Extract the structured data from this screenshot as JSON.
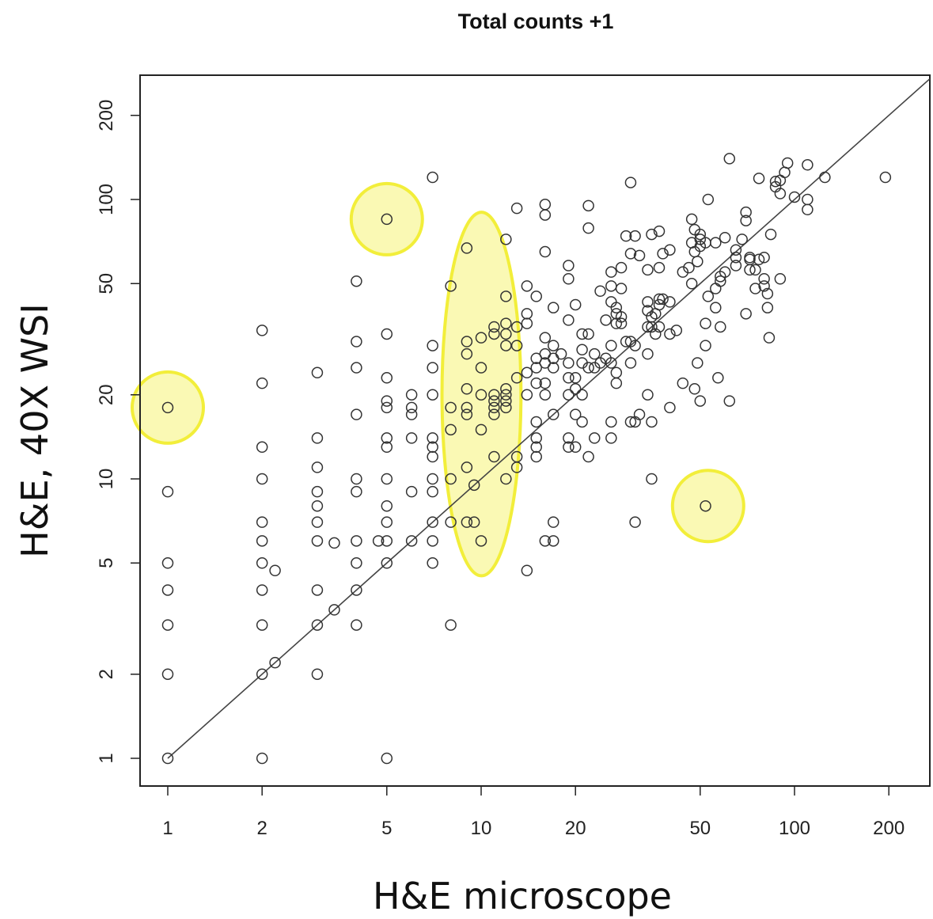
{
  "chart_data": {
    "type": "scatter",
    "title": "Total counts +1",
    "xlabel": "H&E microscope",
    "ylabel": "H&E, 40X WSI",
    "x_scale": "log",
    "y_scale": "log",
    "xlim": [
      0.9,
      300
    ],
    "ylim": [
      0.9,
      300
    ],
    "x_ticks": [
      1,
      2,
      5,
      10,
      20,
      50,
      100,
      200
    ],
    "x_tick_labels": [
      "1",
      "2",
      "5",
      "10",
      "20",
      "50",
      "100",
      "200"
    ],
    "y_ticks": [
      1,
      2,
      5,
      10,
      20,
      50,
      100,
      200
    ],
    "y_tick_labels": [
      "1",
      "2",
      "5",
      "10",
      "20",
      "50",
      "100",
      "200"
    ],
    "grid": false,
    "reference_line": "y = x",
    "marker": "open-circle",
    "highlight_color": "#f2ee3a",
    "highlights": [
      {
        "shape": "circle",
        "center": [
          1,
          18
        ]
      },
      {
        "shape": "circle",
        "center": [
          5,
          85
        ]
      },
      {
        "shape": "ellipse",
        "center": [
          10,
          20
        ],
        "x_range": [
          7.5,
          13.4
        ],
        "y_range": [
          4.5,
          90
        ]
      },
      {
        "shape": "circle",
        "center": [
          53,
          8
        ]
      }
    ],
    "points": [
      [
        1,
        1
      ],
      [
        1,
        2
      ],
      [
        1,
        3
      ],
      [
        1,
        4
      ],
      [
        1,
        5
      ],
      [
        1,
        9
      ],
      [
        1,
        18
      ],
      [
        2,
        1
      ],
      [
        2,
        2
      ],
      [
        2,
        3
      ],
      [
        2,
        4
      ],
      [
        2,
        5
      ],
      [
        2,
        6
      ],
      [
        2,
        7
      ],
      [
        2,
        10
      ],
      [
        2,
        13
      ],
      [
        2,
        22
      ],
      [
        2,
        34
      ],
      [
        2.2,
        2.2
      ],
      [
        2.2,
        4.7
      ],
      [
        3,
        2
      ],
      [
        3,
        3
      ],
      [
        3,
        4
      ],
      [
        3,
        6
      ],
      [
        3,
        7
      ],
      [
        3,
        8
      ],
      [
        3,
        9
      ],
      [
        3,
        11
      ],
      [
        3,
        14
      ],
      [
        3,
        24
      ],
      [
        3.4,
        3.4
      ],
      [
        3.4,
        5.9
      ],
      [
        4,
        3
      ],
      [
        4,
        4
      ],
      [
        4,
        5
      ],
      [
        4,
        6
      ],
      [
        4,
        9
      ],
      [
        4,
        10
      ],
      [
        4,
        17
      ],
      [
        4,
        25
      ],
      [
        4,
        31
      ],
      [
        4,
        51
      ],
      [
        4.7,
        6
      ],
      [
        5,
        1
      ],
      [
        5,
        5
      ],
      [
        5,
        6
      ],
      [
        5,
        7
      ],
      [
        5,
        8
      ],
      [
        5,
        10
      ],
      [
        5,
        13
      ],
      [
        5,
        14
      ],
      [
        5,
        18
      ],
      [
        5,
        19
      ],
      [
        5,
        23
      ],
      [
        5,
        33
      ],
      [
        5,
        85
      ],
      [
        6,
        6
      ],
      [
        6,
        9
      ],
      [
        6,
        14
      ],
      [
        6,
        17
      ],
      [
        6,
        18
      ],
      [
        6,
        20
      ],
      [
        7,
        5
      ],
      [
        7,
        6
      ],
      [
        7,
        7
      ],
      [
        7,
        9
      ],
      [
        7,
        10
      ],
      [
        7,
        12
      ],
      [
        7,
        13
      ],
      [
        7,
        14
      ],
      [
        7,
        20
      ],
      [
        7,
        25
      ],
      [
        7,
        30
      ],
      [
        7,
        120
      ],
      [
        8,
        3
      ],
      [
        8,
        7
      ],
      [
        8,
        10
      ],
      [
        8,
        15
      ],
      [
        8,
        18
      ],
      [
        8,
        49
      ],
      [
        9,
        7
      ],
      [
        9,
        11
      ],
      [
        9,
        17
      ],
      [
        9,
        18
      ],
      [
        9,
        21
      ],
      [
        9,
        28
      ],
      [
        9,
        31
      ],
      [
        9,
        67
      ],
      [
        9.5,
        7
      ],
      [
        9.5,
        9.5
      ],
      [
        10,
        6
      ],
      [
        10,
        15
      ],
      [
        10,
        20
      ],
      [
        10,
        25
      ],
      [
        10,
        32
      ],
      [
        11,
        12
      ],
      [
        11,
        17
      ],
      [
        11,
        18
      ],
      [
        11,
        19
      ],
      [
        11,
        20
      ],
      [
        11,
        33
      ],
      [
        11,
        35
      ],
      [
        12,
        10
      ],
      [
        12,
        18
      ],
      [
        12,
        19
      ],
      [
        12,
        20
      ],
      [
        12,
        21
      ],
      [
        12,
        30
      ],
      [
        12,
        33
      ],
      [
        12,
        36
      ],
      [
        12,
        45
      ],
      [
        12,
        72
      ],
      [
        13,
        11
      ],
      [
        13,
        12
      ],
      [
        13,
        23
      ],
      [
        13,
        30
      ],
      [
        13,
        35
      ],
      [
        13,
        93
      ],
      [
        14,
        4.7
      ],
      [
        14,
        20
      ],
      [
        14,
        24
      ],
      [
        14,
        36
      ],
      [
        14,
        39
      ],
      [
        14,
        49
      ],
      [
        15,
        12
      ],
      [
        15,
        13
      ],
      [
        15,
        14
      ],
      [
        15,
        16
      ],
      [
        15,
        22
      ],
      [
        15,
        25
      ],
      [
        15,
        27
      ],
      [
        15,
        45
      ],
      [
        16,
        6
      ],
      [
        16,
        20
      ],
      [
        16,
        22
      ],
      [
        16,
        26
      ],
      [
        16,
        28
      ],
      [
        16,
        32
      ],
      [
        16,
        65
      ],
      [
        16,
        88
      ],
      [
        16,
        96
      ],
      [
        17,
        6
      ],
      [
        17,
        7
      ],
      [
        17,
        17
      ],
      [
        17,
        25
      ],
      [
        17,
        27
      ],
      [
        17,
        30
      ],
      [
        17,
        41
      ],
      [
        18,
        28
      ],
      [
        19,
        13
      ],
      [
        19,
        14
      ],
      [
        19,
        20
      ],
      [
        19,
        23
      ],
      [
        19,
        26
      ],
      [
        19,
        37
      ],
      [
        19,
        52
      ],
      [
        19,
        58
      ],
      [
        20,
        13
      ],
      [
        20,
        17
      ],
      [
        20,
        21
      ],
      [
        20,
        23
      ],
      [
        20,
        42
      ],
      [
        21,
        16
      ],
      [
        21,
        20
      ],
      [
        21,
        26
      ],
      [
        21,
        29
      ],
      [
        21,
        33
      ],
      [
        22,
        12
      ],
      [
        22,
        25
      ],
      [
        22,
        33
      ],
      [
        22,
        79
      ],
      [
        22,
        95
      ],
      [
        23,
        14
      ],
      [
        23,
        25
      ],
      [
        23,
        28
      ],
      [
        24,
        26
      ],
      [
        24,
        47
      ],
      [
        25,
        27
      ],
      [
        25,
        37
      ],
      [
        26,
        14
      ],
      [
        26,
        16
      ],
      [
        26,
        26
      ],
      [
        26,
        30
      ],
      [
        26,
        43
      ],
      [
        26,
        49
      ],
      [
        26,
        55
      ],
      [
        27,
        22
      ],
      [
        27,
        24
      ],
      [
        27,
        36
      ],
      [
        27,
        39
      ],
      [
        27,
        41
      ],
      [
        28,
        36
      ],
      [
        28,
        38
      ],
      [
        28,
        48
      ],
      [
        28,
        57
      ],
      [
        29,
        31
      ],
      [
        29,
        74
      ],
      [
        30,
        16
      ],
      [
        30,
        26
      ],
      [
        30,
        31
      ],
      [
        30,
        64
      ],
      [
        30,
        115
      ],
      [
        31,
        7
      ],
      [
        31,
        16
      ],
      [
        31,
        30
      ],
      [
        31,
        74
      ],
      [
        32,
        17
      ],
      [
        32,
        63
      ],
      [
        34,
        20
      ],
      [
        34,
        35
      ],
      [
        34,
        56
      ],
      [
        34,
        28
      ],
      [
        34,
        40
      ],
      [
        34,
        43
      ],
      [
        35,
        10
      ],
      [
        35,
        16
      ],
      [
        35,
        35
      ],
      [
        35,
        38
      ],
      [
        35,
        75
      ],
      [
        36,
        33
      ],
      [
        36,
        39
      ],
      [
        37,
        35
      ],
      [
        37,
        42
      ],
      [
        37,
        44
      ],
      [
        37,
        57
      ],
      [
        37,
        77
      ],
      [
        38,
        44
      ],
      [
        38,
        64
      ],
      [
        40,
        18
      ],
      [
        40,
        33
      ],
      [
        40,
        43
      ],
      [
        40,
        66
      ],
      [
        42,
        34
      ],
      [
        44,
        22
      ],
      [
        44,
        55
      ],
      [
        46,
        57
      ],
      [
        47,
        50
      ],
      [
        47,
        70
      ],
      [
        47,
        85
      ],
      [
        48,
        21
      ],
      [
        48,
        65
      ],
      [
        48,
        78
      ],
      [
        49,
        26
      ],
      [
        49,
        60
      ],
      [
        50,
        19
      ],
      [
        50,
        68
      ],
      [
        50,
        72
      ],
      [
        50,
        75
      ],
      [
        52,
        36
      ],
      [
        52,
        30
      ],
      [
        52,
        70
      ],
      [
        52,
        8
      ],
      [
        53,
        45
      ],
      [
        53,
        100
      ],
      [
        56,
        41
      ],
      [
        56,
        48
      ],
      [
        56,
        70
      ],
      [
        57,
        23
      ],
      [
        58,
        35
      ],
      [
        58,
        51
      ],
      [
        58,
        53
      ],
      [
        60,
        55
      ],
      [
        60,
        73
      ],
      [
        62,
        19
      ],
      [
        62,
        140
      ],
      [
        65,
        58
      ],
      [
        65,
        62
      ],
      [
        65,
        66
      ],
      [
        68,
        72
      ],
      [
        70,
        39
      ],
      [
        70,
        84
      ],
      [
        70,
        90
      ],
      [
        72,
        56
      ],
      [
        72,
        61
      ],
      [
        72,
        62
      ],
      [
        75,
        48
      ],
      [
        75,
        56
      ],
      [
        77,
        61
      ],
      [
        77,
        119
      ],
      [
        80,
        52
      ],
      [
        80,
        62
      ],
      [
        80,
        49
      ],
      [
        82,
        41
      ],
      [
        82,
        46
      ],
      [
        83,
        32
      ],
      [
        84,
        75
      ],
      [
        87,
        111
      ],
      [
        87,
        116
      ],
      [
        90,
        52
      ],
      [
        90,
        105
      ],
      [
        90,
        117
      ],
      [
        93,
        125
      ],
      [
        95,
        135
      ],
      [
        100,
        102
      ],
      [
        110,
        92
      ],
      [
        110,
        100
      ],
      [
        110,
        133
      ],
      [
        125,
        120
      ],
      [
        195,
        120
      ]
    ]
  }
}
